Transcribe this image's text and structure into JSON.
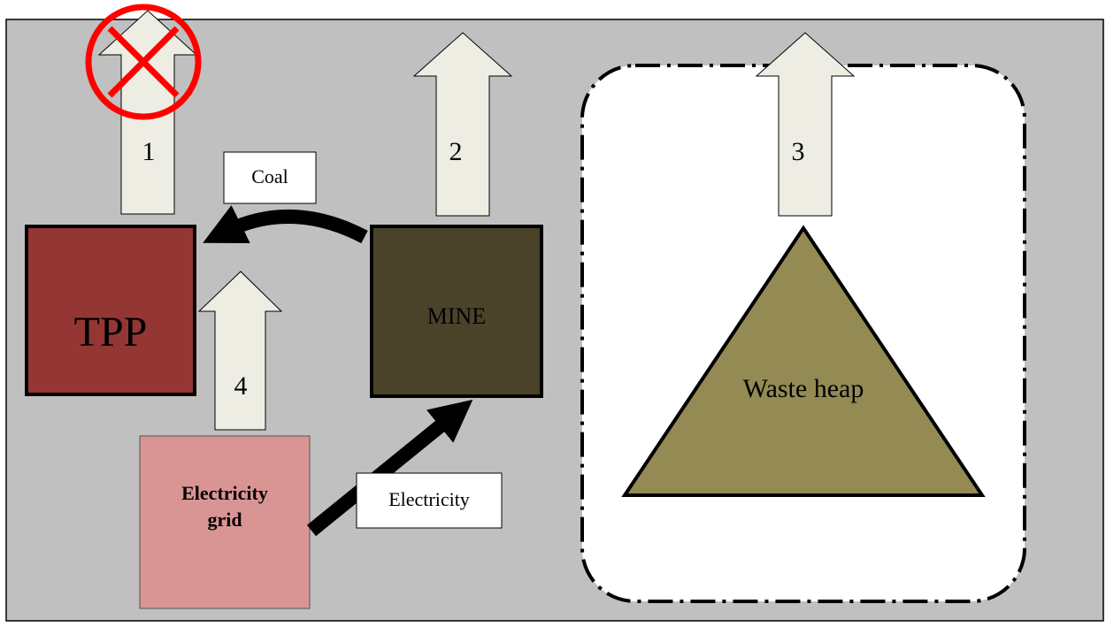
{
  "nodes": {
    "tpp": {
      "label": "TPP"
    },
    "mine": {
      "label": "MINE"
    },
    "waste_heap": {
      "label": "Waste heap"
    },
    "grid": {
      "label": [
        "Electricity",
        "grid"
      ]
    }
  },
  "arrows": [
    {
      "label": "1"
    },
    {
      "label": "2"
    },
    {
      "label": "3"
    },
    {
      "label": "4"
    }
  ],
  "flows": [
    {
      "label": "Coal"
    },
    {
      "label": "Electricity"
    }
  ]
}
